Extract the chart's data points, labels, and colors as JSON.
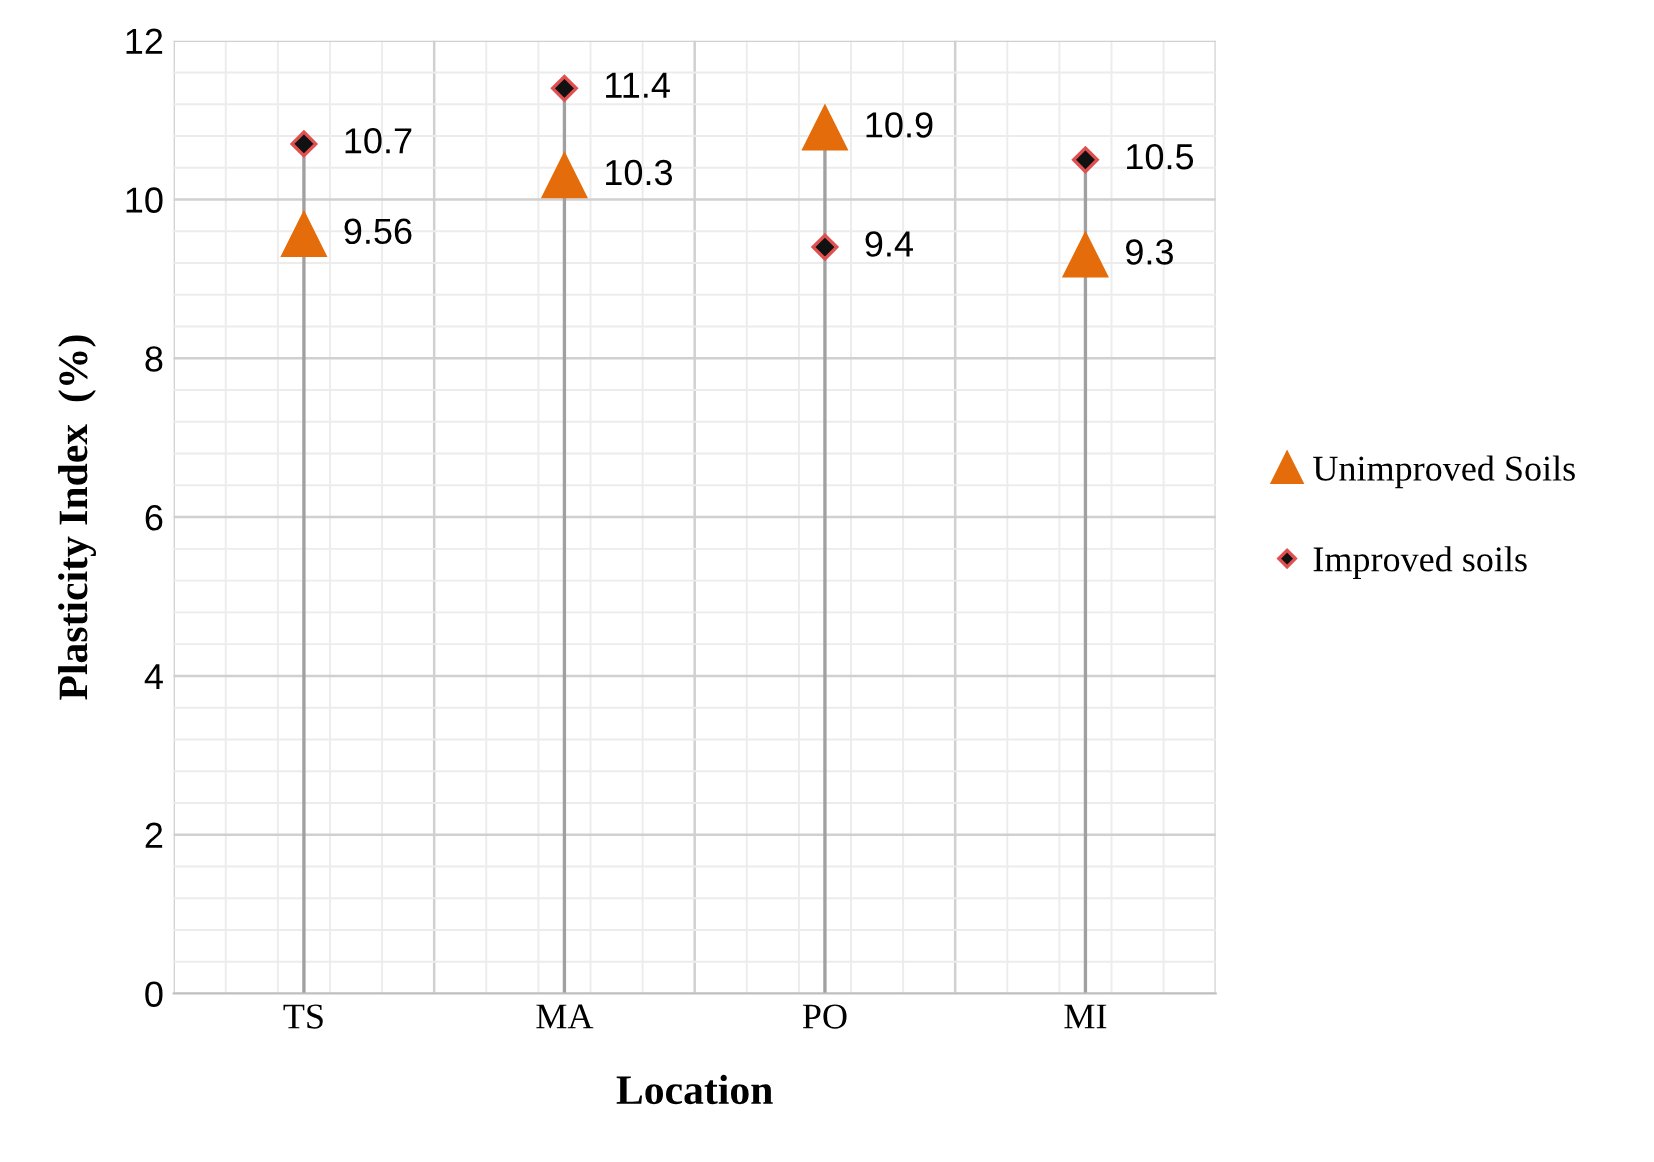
{
  "chart_data": {
    "type": "scatter",
    "xlabel": "Location",
    "ylabel": "Plasticity Index  (%)",
    "categories": [
      "TS",
      "MA",
      "PO",
      "MI"
    ],
    "series": [
      {
        "name": "Unimproved Soils",
        "color": "#e46c0a",
        "marker": "triangle",
        "values": [
          9.56,
          10.3,
          10.9,
          9.3
        ]
      },
      {
        "name": "Improved soils",
        "color": "#111111",
        "marker": "diamond",
        "values": [
          10.7,
          11.4,
          9.4,
          10.5
        ]
      }
    ],
    "ylim": [
      0,
      12
    ],
    "yticks": [
      0,
      2,
      4,
      6,
      8,
      10,
      12
    ],
    "grid": true,
    "legend": "right",
    "data_labels": true
  }
}
